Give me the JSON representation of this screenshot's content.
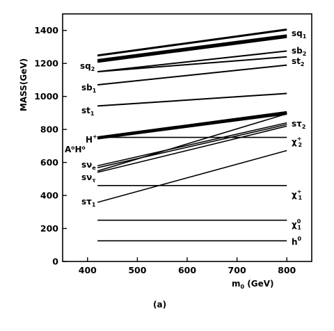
{
  "chart_data": {
    "type": "line",
    "title": "",
    "xlabel": "m0 (GeV)",
    "ylabel": "MASS(GeV)",
    "caption": "(a)",
    "xlim": [
      350,
      850
    ],
    "ylim": [
      0,
      1500
    ],
    "xticks": [
      400,
      500,
      600,
      700,
      800
    ],
    "yticks": [
      0,
      200,
      400,
      600,
      800,
      1000,
      1200,
      1400
    ],
    "grid": false,
    "legend": "none (curves labeled directly)",
    "series": [
      {
        "x": [
          420,
          800
        ],
        "y": [
          1248,
          1405
        ],
        "width": 3
      },
      {
        "x": [
          420,
          800
        ],
        "y": [
          1220,
          1370
        ],
        "width": 3
      },
      {
        "x": [
          420,
          800
        ],
        "y": [
          1210,
          1360
        ],
        "width": 3
      },
      {
        "x": [
          420,
          800
        ],
        "y": [
          1150,
          1275
        ],
        "width": 2
      },
      {
        "x": [
          420,
          800
        ],
        "y": [
          1150,
          1240
        ],
        "width": 2
      },
      {
        "x": [
          420,
          800
        ],
        "y": [
          1070,
          1190
        ],
        "width": 2
      },
      {
        "x": [
          420,
          800
        ],
        "y": [
          942,
          1018
        ],
        "width": 2
      },
      {
        "x": [
          420,
          800
        ],
        "y": [
          752,
          905
        ],
        "width": 3
      },
      {
        "x": [
          420,
          800
        ],
        "y": [
          748,
          900
        ],
        "width": 3
      },
      {
        "x": [
          420,
          800
        ],
        "y": [
          745,
          895
        ],
        "width": 3
      },
      {
        "x": [
          420,
          800
        ],
        "y": [
          752,
          752
        ],
        "width": 1.6
      },
      {
        "x": [
          420,
          800
        ],
        "y": [
          548,
          895
        ],
        "width": 1.6
      },
      {
        "x": [
          420,
          800
        ],
        "y": [
          580,
          840
        ],
        "width": 1.6
      },
      {
        "x": [
          420,
          800
        ],
        "y": [
          568,
          830
        ],
        "width": 1.6
      },
      {
        "x": [
          420,
          800
        ],
        "y": [
          540,
          820
        ],
        "width": 1.6
      },
      {
        "x": [
          420,
          800
        ],
        "y": [
          460,
          460
        ],
        "width": 1.6
      },
      {
        "x": [
          420,
          800
        ],
        "y": [
          358,
          672
        ],
        "width": 1.6
      },
      {
        "x": [
          420,
          800
        ],
        "y": [
          250,
          250
        ],
        "width": 1.6
      },
      {
        "x": [
          420,
          800
        ],
        "y": [
          125,
          125
        ],
        "width": 1.6
      }
    ],
    "labels": {
      "sq1": {
        "main": "sq",
        "sub": "1"
      },
      "sq2": {
        "main": "sq",
        "sub": "2"
      },
      "sb2": {
        "main": "sb",
        "sub": "2"
      },
      "st2": {
        "main": "st",
        "sub": "2"
      },
      "sb1": {
        "main": "sb",
        "sub": "1"
      },
      "st1": {
        "main": "st",
        "sub": "1"
      },
      "stau2": {
        "main": "sτ",
        "sub": "2"
      },
      "chargino2": {
        "main": "χ",
        "sup": "+",
        "sub": "2"
      },
      "hpm": {
        "main": "H",
        "sup": "+"
      },
      "a0h0": {
        "text": "A⁰H⁰"
      },
      "svnu_e": {
        "main": "sν",
        "sub": "e"
      },
      "svnu_tau": {
        "main": "sν",
        "sub": "τ"
      },
      "chargino1": {
        "main": "χ",
        "sup": "+",
        "sub": "1"
      },
      "stau1": {
        "main": "sτ",
        "sub": "1"
      },
      "neutralino1": {
        "main": "χ",
        "sup": "0",
        "sub": "1"
      },
      "h0": {
        "main": "h",
        "sup": "0"
      }
    }
  }
}
